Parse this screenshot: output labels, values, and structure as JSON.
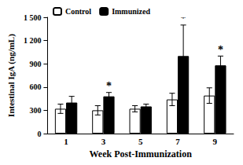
{
  "chart_data": {
    "type": "bar",
    "x_label": "Week Post-Immunization",
    "y_label": "Intestinal IgA (ng/mL)",
    "categories": [
      "1",
      "3",
      "5",
      "7",
      "9"
    ],
    "series": [
      {
        "name": "Control",
        "color": "#ffffff",
        "values": [
          320,
          300,
          320,
          440,
          490
        ],
        "errors": [
          60,
          60,
          40,
          80,
          100
        ]
      },
      {
        "name": "Immunized",
        "color": "#000000",
        "values": [
          400,
          480,
          350,
          1000,
          880
        ],
        "errors": [
          80,
          50,
          30,
          400,
          120
        ],
        "annotations": [
          null,
          "*",
          null,
          "*",
          "*"
        ]
      }
    ],
    "ylim": [
      0,
      1500
    ],
    "yticks": [
      0,
      300,
      600,
      900,
      {
        "value": 1200,
        "label": "1 200"
      },
      {
        "value": 1500,
        "label": "1 500"
      }
    ],
    "legend": "top-left",
    "grid": false
  }
}
